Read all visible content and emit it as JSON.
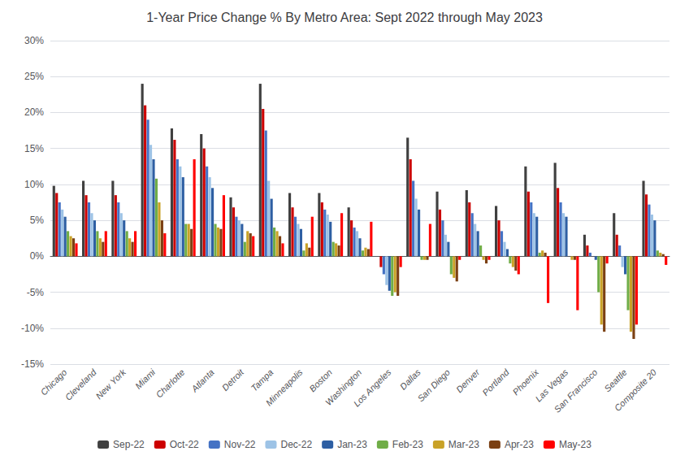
{
  "chart_data": {
    "type": "bar",
    "title": "1-Year Price Change % By Metro Area: Sept 2022 through May 2023",
    "categories": [
      "Chicago",
      "Cleveland",
      "New York",
      "Miami",
      "Charlotte",
      "Atlanta",
      "Detroit",
      "Tampa",
      "Minneapolis",
      "Boston",
      "Washington",
      "Los Angeles",
      "Dallas",
      "San Diego",
      "Denver",
      "Portland",
      "Phoenix",
      "Las Vegas",
      "San Francisco",
      "Seattle",
      "Composite 20"
    ],
    "series": [
      {
        "name": "Sep-22",
        "color": "#404040",
        "values": [
          9.8,
          10.5,
          10.5,
          24.0,
          17.8,
          17.0,
          8.2,
          24.0,
          8.8,
          8.8,
          6.8,
          0.0,
          16.5,
          9.0,
          9.2,
          7.0,
          12.5,
          13.0,
          3.0,
          6.0,
          10.5
        ]
      },
      {
        "name": "Oct-22",
        "color": "#cc0000",
        "values": [
          8.8,
          8.5,
          8.5,
          21.0,
          16.2,
          15.0,
          6.8,
          20.5,
          6.8,
          7.5,
          5.0,
          -1.5,
          13.5,
          6.5,
          7.5,
          5.0,
          9.0,
          9.5,
          1.5,
          3.0,
          8.6
        ]
      },
      {
        "name": "Nov-22",
        "color": "#4472c4",
        "values": [
          7.5,
          7.5,
          7.5,
          19.0,
          13.5,
          12.5,
          5.5,
          17.5,
          5.5,
          6.5,
          4.0,
          -2.5,
          10.5,
          5.0,
          6.0,
          3.5,
          7.5,
          7.5,
          0.5,
          1.5,
          7.2
        ]
      },
      {
        "name": "Dec-22",
        "color": "#9dc3e6",
        "values": [
          6.5,
          6.0,
          6.0,
          15.5,
          12.5,
          11.0,
          5.0,
          10.5,
          4.5,
          5.8,
          3.5,
          -4.0,
          8.0,
          3.0,
          4.5,
          2.0,
          6.0,
          6.0,
          0.0,
          -1.5,
          5.8
        ]
      },
      {
        "name": "Jan-23",
        "color": "#2e5fa3",
        "values": [
          5.5,
          5.0,
          5.0,
          13.5,
          11.0,
          9.5,
          4.5,
          8.0,
          3.8,
          4.8,
          2.5,
          -4.8,
          6.5,
          2.0,
          3.5,
          1.0,
          5.5,
          5.5,
          -0.5,
          -2.5,
          5.0
        ]
      },
      {
        "name": "Feb-23",
        "color": "#70ad47",
        "values": [
          3.5,
          3.5,
          3.5,
          10.8,
          4.5,
          4.5,
          2.0,
          4.0,
          0.8,
          2.0,
          0.8,
          -5.5,
          -0.5,
          -2.5,
          1.5,
          -1.0,
          0.5,
          0.0,
          -5.0,
          -7.5,
          0.8
        ]
      },
      {
        "name": "Mar-23",
        "color": "#c9a227",
        "values": [
          2.8,
          2.5,
          2.5,
          7.5,
          4.5,
          4.0,
          3.5,
          3.5,
          1.8,
          1.8,
          1.2,
          -5.0,
          -0.5,
          -3.0,
          -0.5,
          -1.5,
          0.8,
          -0.5,
          -9.5,
          -10.5,
          0.5
        ]
      },
      {
        "name": "Apr-23",
        "color": "#7b4013",
        "values": [
          2.5,
          2.0,
          2.0,
          5.0,
          3.8,
          3.8,
          3.2,
          2.8,
          1.2,
          1.5,
          1.0,
          -5.5,
          -0.5,
          -3.5,
          -1.0,
          -2.0,
          0.5,
          -0.5,
          -10.5,
          -11.5,
          0.3
        ]
      },
      {
        "name": "May-23",
        "color": "#ff0000",
        "values": [
          1.8,
          3.5,
          3.5,
          3.2,
          13.5,
          8.5,
          2.8,
          1.8,
          5.5,
          6.0,
          4.8,
          -1.5,
          4.5,
          -0.5,
          -0.5,
          -2.5,
          -6.5,
          -7.5,
          -1.0,
          -9.5,
          -1.2
        ]
      }
    ],
    "ylim": [
      -15,
      30
    ],
    "yticks": [
      {
        "value": -15,
        "label": "-15%"
      },
      {
        "value": -10,
        "label": "-10%"
      },
      {
        "value": -5,
        "label": "-5%"
      },
      {
        "value": 0,
        "label": "0%"
      },
      {
        "value": 5,
        "label": "5%"
      },
      {
        "value": 10,
        "label": "10%"
      },
      {
        "value": 15,
        "label": "15%"
      },
      {
        "value": 20,
        "label": "20%"
      },
      {
        "value": 25,
        "label": "25%"
      },
      {
        "value": 30,
        "label": "30%"
      }
    ],
    "grid": true,
    "legend": "bottom"
  }
}
